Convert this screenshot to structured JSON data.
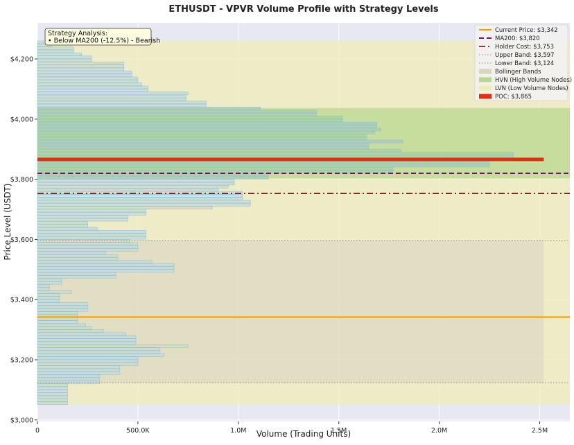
{
  "chart_data": {
    "type": "bar",
    "orientation": "horizontal",
    "title": "ETHUSDT - VPVR Volume Profile with Strategy Levels",
    "xlabel": "Volume (Trading Units)",
    "ylabel": "Price Level (USDT)",
    "xlim": [
      0,
      2650000
    ],
    "ylim": [
      2995,
      4320
    ],
    "x_ticks": [
      0,
      500000,
      1000000,
      1500000,
      2000000,
      2500000
    ],
    "x_tick_labels": [
      "0",
      "500.0K",
      "1.0M",
      "1.5M",
      "2.0M",
      "2.5M"
    ],
    "y_ticks": [
      3000,
      3200,
      3400,
      3600,
      3800,
      4000,
      4200
    ],
    "y_tick_labels": [
      "$3,000",
      "$3,200",
      "$3,400",
      "$3,600",
      "$3,800",
      "$4,000",
      "$4,200"
    ],
    "grid": true,
    "legend_position": "top-right",
    "annotation": {
      "title": "Strategy Analysis:",
      "line": "• Below MA200 (-12.5%) - Bearish"
    },
    "levels": [
      {
        "name": "Current Price: $3,342",
        "value": 3342,
        "color": "#f5a000",
        "style": "solid"
      },
      {
        "name": "MA200: $3,820",
        "value": 3820,
        "color": "#800080",
        "style": "dashed"
      },
      {
        "name": "Holder Cost: $3,753",
        "value": 3753,
        "color": "#8b1a1a",
        "style": "dashdot"
      },
      {
        "name": "Upper Band: $3,597",
        "value": 3597,
        "color": "#888888",
        "style": "dotted"
      },
      {
        "name": "Lower Band: $3,124",
        "value": 3124,
        "color": "#888888",
        "style": "dotted"
      }
    ],
    "bands": {
      "bollinger": {
        "label": "Bollinger Bands",
        "low": 3124,
        "high": 3597,
        "x_max": 2520000,
        "color": "#d8d4c0"
      },
      "hvn": {
        "label": "HVN (High Volume Nodes)",
        "low": 3803,
        "high": 4037,
        "color": "#b8d890"
      },
      "lvn": {
        "label": "LVN (Low Volume Nodes)",
        "low": 3050,
        "high": 4260,
        "color": "#f0ecb8"
      }
    },
    "poc": {
      "label": "POC: $3,865",
      "value": 3865,
      "x_max": 2520000,
      "color": "#e03010"
    },
    "bin_height": 10,
    "volume_profile": [
      {
        "price": 3055,
        "volume": 150000
      },
      {
        "price": 3065,
        "volume": 150000
      },
      {
        "price": 3075,
        "volume": 150000
      },
      {
        "price": 3085,
        "volume": 150000
      },
      {
        "price": 3095,
        "volume": 150000
      },
      {
        "price": 3105,
        "volume": 150000
      },
      {
        "price": 3115,
        "volume": 150000
      },
      {
        "price": 3125,
        "volume": 310000
      },
      {
        "price": 3135,
        "volume": 310000
      },
      {
        "price": 3145,
        "volume": 310000
      },
      {
        "price": 3155,
        "volume": 410000
      },
      {
        "price": 3165,
        "volume": 410000
      },
      {
        "price": 3175,
        "volume": 410000
      },
      {
        "price": 3185,
        "volume": 500000
      },
      {
        "price": 3195,
        "volume": 500000
      },
      {
        "price": 3205,
        "volume": 500000
      },
      {
        "price": 3215,
        "volume": 630000
      },
      {
        "price": 3225,
        "volume": 610000
      },
      {
        "price": 3235,
        "volume": 610000
      },
      {
        "price": 3245,
        "volume": 750000
      },
      {
        "price": 3255,
        "volume": 490000
      },
      {
        "price": 3265,
        "volume": 490000
      },
      {
        "price": 3275,
        "volume": 490000
      },
      {
        "price": 3285,
        "volume": 440000
      },
      {
        "price": 3295,
        "volume": 330000
      },
      {
        "price": 3305,
        "volume": 270000
      },
      {
        "price": 3315,
        "volume": 240000
      },
      {
        "price": 3325,
        "volume": 200000
      },
      {
        "price": 3335,
        "volume": 200000
      },
      {
        "price": 3345,
        "volume": 200000
      },
      {
        "price": 3355,
        "volume": 200000
      },
      {
        "price": 3365,
        "volume": 250000
      },
      {
        "price": 3375,
        "volume": 250000
      },
      {
        "price": 3385,
        "volume": 250000
      },
      {
        "price": 3395,
        "volume": 110000
      },
      {
        "price": 3405,
        "volume": 110000
      },
      {
        "price": 3415,
        "volume": 110000
      },
      {
        "price": 3425,
        "volume": 170000
      },
      {
        "price": 3435,
        "volume": 60000
      },
      {
        "price": 3445,
        "volume": 60000
      },
      {
        "price": 3455,
        "volume": 120000
      },
      {
        "price": 3465,
        "volume": 120000
      },
      {
        "price": 3475,
        "volume": 390000
      },
      {
        "price": 3485,
        "volume": 390000
      },
      {
        "price": 3495,
        "volume": 680000
      },
      {
        "price": 3505,
        "volume": 680000
      },
      {
        "price": 3515,
        "volume": 680000
      },
      {
        "price": 3525,
        "volume": 570000
      },
      {
        "price": 3535,
        "volume": 400000
      },
      {
        "price": 3545,
        "volume": 400000
      },
      {
        "price": 3555,
        "volume": 340000
      },
      {
        "price": 3565,
        "volume": 500000
      },
      {
        "price": 3575,
        "volume": 500000
      },
      {
        "price": 3585,
        "volume": 500000
      },
      {
        "price": 3595,
        "volume": 460000
      },
      {
        "price": 3605,
        "volume": 540000
      },
      {
        "price": 3615,
        "volume": 540000
      },
      {
        "price": 3625,
        "volume": 540000
      },
      {
        "price": 3635,
        "volume": 300000
      },
      {
        "price": 3645,
        "volume": 250000
      },
      {
        "price": 3655,
        "volume": 250000
      },
      {
        "price": 3665,
        "volume": 450000
      },
      {
        "price": 3675,
        "volume": 450000
      },
      {
        "price": 3685,
        "volume": 540000
      },
      {
        "price": 3695,
        "volume": 540000
      },
      {
        "price": 3705,
        "volume": 870000
      },
      {
        "price": 3715,
        "volume": 1060000
      },
      {
        "price": 3725,
        "volume": 1060000
      },
      {
        "price": 3735,
        "volume": 1020000
      },
      {
        "price": 3745,
        "volume": 1020000
      },
      {
        "price": 3755,
        "volume": 1020000
      },
      {
        "price": 3765,
        "volume": 900000
      },
      {
        "price": 3775,
        "volume": 950000
      },
      {
        "price": 3785,
        "volume": 980000
      },
      {
        "price": 3795,
        "volume": 980000
      },
      {
        "price": 3805,
        "volume": 1150000
      },
      {
        "price": 3815,
        "volume": 1150000
      },
      {
        "price": 3825,
        "volume": 1770000
      },
      {
        "price": 3835,
        "volume": 1770000
      },
      {
        "price": 3845,
        "volume": 2250000
      },
      {
        "price": 3855,
        "volume": 2250000
      },
      {
        "price": 3865,
        "volume": 2520000
      },
      {
        "price": 3875,
        "volume": 2370000
      },
      {
        "price": 3885,
        "volume": 2370000
      },
      {
        "price": 3895,
        "volume": 1810000
      },
      {
        "price": 3905,
        "volume": 1650000
      },
      {
        "price": 3915,
        "volume": 1650000
      },
      {
        "price": 3925,
        "volume": 1820000
      },
      {
        "price": 3935,
        "volume": 1640000
      },
      {
        "price": 3945,
        "volume": 1640000
      },
      {
        "price": 3955,
        "volume": 1680000
      },
      {
        "price": 3965,
        "volume": 1710000
      },
      {
        "price": 3975,
        "volume": 1690000
      },
      {
        "price": 3985,
        "volume": 1690000
      },
      {
        "price": 3995,
        "volume": 1520000
      },
      {
        "price": 4005,
        "volume": 1520000
      },
      {
        "price": 4015,
        "volume": 1390000
      },
      {
        "price": 4025,
        "volume": 1390000
      },
      {
        "price": 4035,
        "volume": 1110000
      },
      {
        "price": 4045,
        "volume": 840000
      },
      {
        "price": 4055,
        "volume": 840000
      },
      {
        "price": 4065,
        "volume": 740000
      },
      {
        "price": 4075,
        "volume": 740000
      },
      {
        "price": 4085,
        "volume": 750000
      },
      {
        "price": 4095,
        "volume": 550000
      },
      {
        "price": 4105,
        "volume": 550000
      },
      {
        "price": 4115,
        "volume": 520000
      },
      {
        "price": 4125,
        "volume": 500000
      },
      {
        "price": 4135,
        "volume": 500000
      },
      {
        "price": 4145,
        "volume": 470000
      },
      {
        "price": 4155,
        "volume": 470000
      },
      {
        "price": 4165,
        "volume": 430000
      },
      {
        "price": 4175,
        "volume": 430000
      },
      {
        "price": 4185,
        "volume": 430000
      },
      {
        "price": 4195,
        "volume": 270000
      },
      {
        "price": 4205,
        "volume": 270000
      },
      {
        "price": 4215,
        "volume": 220000
      },
      {
        "price": 4225,
        "volume": 180000
      },
      {
        "price": 4235,
        "volume": 180000
      },
      {
        "price": 4245,
        "volume": 70000
      },
      {
        "price": 4255,
        "volume": 30000
      }
    ],
    "colors": {
      "plot_bg": "#e8e8f2",
      "bar_hvn": "#a8d0a8",
      "bar_normal": "#c8dcd4",
      "bar_edge": "#94c0d8"
    }
  }
}
